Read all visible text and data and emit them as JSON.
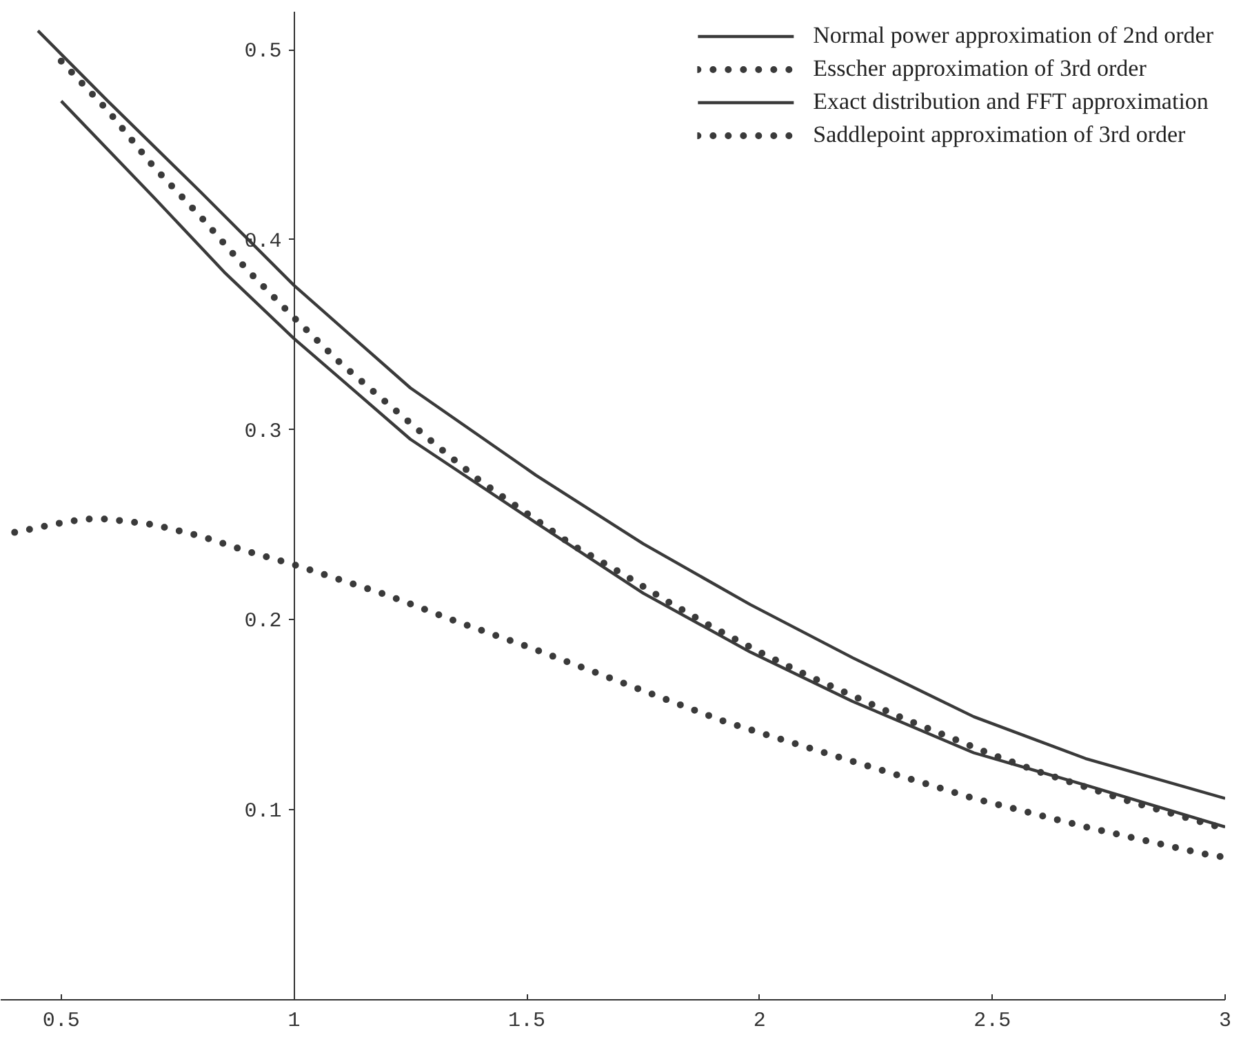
{
  "chart_data": {
    "type": "line",
    "xlim": [
      0.37,
      3.0
    ],
    "ylim": [
      0,
      0.52
    ],
    "xticks": [
      {
        "value": 0.5,
        "label": "0.5"
      },
      1,
      {
        "value": 1.5,
        "label": "1.5"
      },
      2,
      {
        "value": 2.5,
        "label": "2.5"
      },
      3
    ],
    "yticks": [
      {
        "value": 0.1,
        "label": "0.1"
      },
      {
        "value": 0.2,
        "label": "0.2"
      },
      {
        "value": 0.3,
        "label": "0.3"
      },
      {
        "value": 0.4,
        "label": "0.4"
      },
      {
        "value": 0.5,
        "label": "0.5"
      }
    ],
    "grid": false,
    "legend": "top right",
    "series": [
      {
        "name": "Normal power approximation of 2nd order",
        "color": "#3a3a3a",
        "line_style": "solid",
        "x": [
          0.45,
          0.6,
          0.8,
          1.0,
          1.25,
          1.52,
          1.75,
          1.98,
          2.2,
          2.46,
          2.7,
          3.0
        ],
        "values": [
          0.51,
          0.473,
          0.425,
          0.376,
          0.322,
          0.276,
          0.24,
          0.208,
          0.18,
          0.149,
          0.127,
          0.106
        ]
      },
      {
        "name": "Esscher approximation of 3rd order",
        "color": "#3a3a3a",
        "line_style": "dotted",
        "x": [
          0.4,
          0.5,
          0.55,
          0.6,
          0.7,
          0.8,
          0.9,
          1.0,
          1.2,
          1.35,
          1.5,
          1.64,
          1.8,
          1.93,
          2.1,
          2.3,
          2.46,
          2.7,
          2.95,
          3.0
        ],
        "values": [
          0.246,
          0.251,
          0.253,
          0.253,
          0.25,
          0.244,
          0.236,
          0.229,
          0.213,
          0.199,
          0.186,
          0.173,
          0.158,
          0.146,
          0.133,
          0.118,
          0.106,
          0.091,
          0.077,
          0.075
        ]
      },
      {
        "name": "Exact distribution and FFT approximation",
        "color": "#3a3a3a",
        "line_style": "solid",
        "x": [
          0.5,
          0.7,
          0.85,
          1.0,
          1.25,
          1.52,
          1.75,
          1.98,
          2.2,
          2.46,
          2.7,
          3.0
        ],
        "values": [
          0.473,
          0.422,
          0.383,
          0.348,
          0.295,
          0.251,
          0.214,
          0.183,
          0.157,
          0.13,
          0.113,
          0.091
        ]
      },
      {
        "name": "Saddlepoint approximation of 3rd order",
        "color": "#3a3a3a",
        "line_style": "dotted",
        "x": [
          0.5,
          0.6,
          0.7,
          0.8,
          0.9,
          1.0,
          1.1,
          1.2,
          1.3,
          1.4,
          1.5,
          1.6,
          1.7,
          1.8,
          1.9,
          2.0,
          2.1,
          2.2,
          2.3,
          2.4,
          2.5,
          2.6,
          2.7,
          2.8,
          2.9,
          3.0
        ],
        "values": [
          0.494,
          0.468,
          0.438,
          0.412,
          0.384,
          0.359,
          0.335,
          0.314,
          0.293,
          0.273,
          0.256,
          0.239,
          0.225,
          0.21,
          0.196,
          0.183,
          0.171,
          0.16,
          0.149,
          0.139,
          0.129,
          0.12,
          0.112,
          0.104,
          0.097,
          0.09
        ]
      }
    ]
  }
}
